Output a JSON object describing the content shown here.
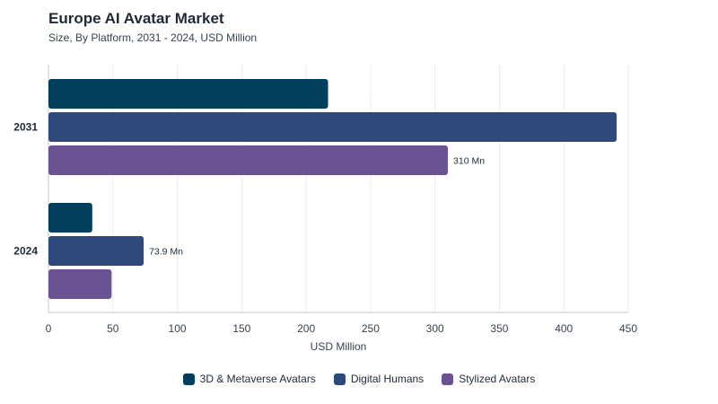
{
  "chart_data": {
    "type": "bar",
    "orientation": "horizontal",
    "title": "Europe AI Avatar Market",
    "subtitle": "Size, By Platform, 2031 - 2024, USD Million",
    "xlabel": "USD Million",
    "ylabel": "",
    "xlim": [
      0,
      450
    ],
    "x_ticks": [
      "0",
      "50",
      "100",
      "150",
      "200",
      "250",
      "300",
      "350",
      "400",
      "450"
    ],
    "categories": [
      "2031",
      "2024"
    ],
    "series": [
      {
        "name": "3D & Metaverse Avatars",
        "color": "#023f5c",
        "values": [
          217,
          34
        ]
      },
      {
        "name": "Digital Humans",
        "color": "#2d4a7b",
        "values": [
          441,
          73.9
        ]
      },
      {
        "name": "Stylized Avatars",
        "color": "#6b5293",
        "values": [
          310,
          49
        ]
      }
    ],
    "data_labels": [
      {
        "category": "2031",
        "series": "Stylized Avatars",
        "text": "310 Mn"
      },
      {
        "category": "2024",
        "series": "Digital Humans",
        "text": "73.9 Mn"
      }
    ],
    "grid": "vertical",
    "legend_position": "bottom"
  }
}
